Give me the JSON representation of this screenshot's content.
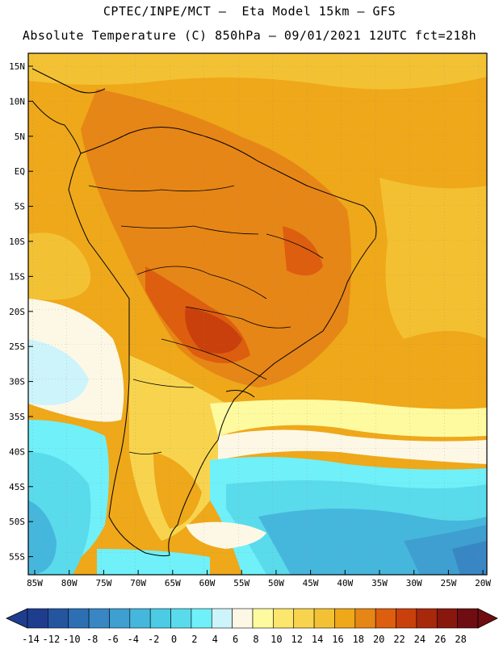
{
  "title_line1": "CPTEC/INPE/MCT –  Eta Model 15km – GFS",
  "title_line2": "Absolute Temperature (C) 850hPa – 09/01/2021 12UTC fct=218h",
  "lat_labels": [
    "15N",
    "10N",
    "5N",
    "EQ",
    "5S",
    "10S",
    "15S",
    "20S",
    "25S",
    "30S",
    "35S",
    "40S",
    "45S",
    "50S",
    "55S"
  ],
  "lon_labels": [
    "85W",
    "80W",
    "75W",
    "70W",
    "65W",
    "60W",
    "55W",
    "50W",
    "45W",
    "40W",
    "35W",
    "30W",
    "25W",
    "20W"
  ],
  "colorbar": {
    "labels": [
      "-14",
      "-12",
      "-10",
      "-8",
      "-6",
      "-4",
      "-2",
      "0",
      "2",
      "4",
      "6",
      "8",
      "10",
      "12",
      "14",
      "16",
      "18",
      "20",
      "22",
      "24",
      "26",
      "28"
    ],
    "colors": [
      "#1f3d8f",
      "#2456a0",
      "#2c6fb3",
      "#3887c4",
      "#3f9fd0",
      "#46b7dc",
      "#4ccbe4",
      "#5adbec",
      "#70f0f8",
      "#cdf4fa",
      "#fdf8e6",
      "#fefaa0",
      "#fbe66e",
      "#f8d44e",
      "#f3c234",
      "#eea81a",
      "#e68616",
      "#dd5e0e",
      "#c9400c",
      "#a8280c",
      "#88180e",
      "#6e0e12"
    ]
  }
}
